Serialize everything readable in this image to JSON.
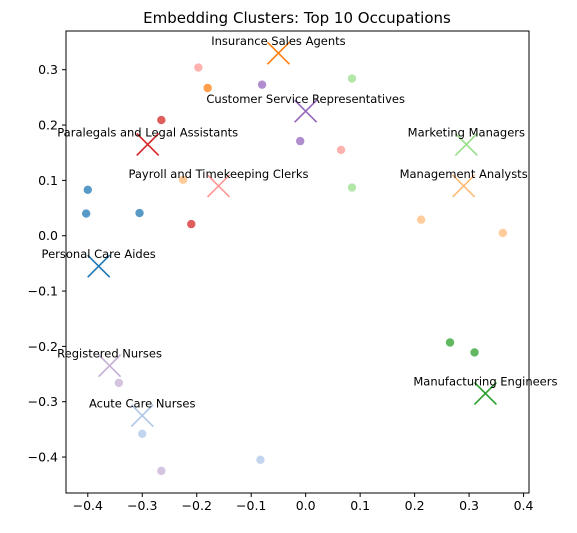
{
  "chart_data": {
    "type": "scatter",
    "title": "Embedding Clusters: Top 10 Occupations",
    "xlabel": "",
    "ylabel": "",
    "xlim": [
      -0.44,
      0.41
    ],
    "ylim": [
      -0.465,
      0.37
    ],
    "xticks": [
      -0.4,
      -0.3,
      -0.2,
      -0.1,
      0.0,
      0.1,
      0.2,
      0.3,
      0.4
    ],
    "xtick_labels": [
      "−0.4",
      "−0.3",
      "−0.2",
      "−0.1",
      "0.0",
      "0.1",
      "0.2",
      "0.3",
      "0.4"
    ],
    "yticks": [
      -0.4,
      -0.3,
      -0.2,
      -0.1,
      0.0,
      0.1,
      0.2,
      0.3
    ],
    "ytick_labels": [
      "−0.4",
      "−0.3",
      "−0.2",
      "−0.1",
      "0.0",
      "0.1",
      "0.2",
      "0.3"
    ],
    "grid": false,
    "clusters": [
      {
        "label": "Insurance Sales Agents",
        "color": "#ff7f0e",
        "centroid": [
          -0.05,
          0.33
        ],
        "points": [
          [
            -0.18,
            0.267
          ]
        ]
      },
      {
        "label": "Customer Service Representatives",
        "color": "#9467bd",
        "centroid": [
          0.0,
          0.225
        ],
        "points": [
          [
            -0.08,
            0.273
          ],
          [
            -0.01,
            0.171
          ]
        ]
      },
      {
        "label": "Paralegals and Legal Assistants",
        "color": "#d62728",
        "centroid": [
          -0.29,
          0.165
        ],
        "points": [
          [
            -0.265,
            0.209
          ],
          [
            -0.21,
            0.021
          ]
        ]
      },
      {
        "label": "Payroll and Timekeeping Clerks",
        "color": "#ff9896",
        "centroid": [
          -0.16,
          0.09
        ],
        "points": [
          [
            -0.197,
            0.304
          ],
          [
            0.065,
            0.155
          ]
        ]
      },
      {
        "label": "Marketing Managers",
        "color": "#98df8a",
        "centroid": [
          0.295,
          0.165
        ],
        "points": [
          [
            0.085,
            0.284
          ],
          [
            0.085,
            0.087
          ]
        ]
      },
      {
        "label": "Management Analysts",
        "color": "#ffbb78",
        "centroid": [
          0.29,
          0.09
        ],
        "points": [
          [
            -0.225,
            0.101
          ],
          [
            0.212,
            0.029
          ],
          [
            0.362,
            0.005
          ]
        ]
      },
      {
        "label": "Personal Care Aides",
        "color": "#1f77b4",
        "centroid": [
          -0.38,
          -0.055
        ],
        "points": [
          [
            -0.4,
            0.083
          ],
          [
            -0.403,
            0.04
          ],
          [
            -0.305,
            0.041
          ]
        ]
      },
      {
        "label": "Registered Nurses",
        "color": "#c5b0d5",
        "centroid": [
          -0.36,
          -0.235
        ],
        "points": [
          [
            -0.343,
            -0.266
          ],
          [
            -0.265,
            -0.425
          ]
        ]
      },
      {
        "label": "Acute Care Nurses",
        "color": "#aec7e8",
        "centroid": [
          -0.3,
          -0.325
        ],
        "points": [
          [
            -0.3,
            -0.358
          ],
          [
            -0.083,
            -0.405
          ]
        ]
      },
      {
        "label": "Manufacturing Engineers",
        "color": "#2ca02c",
        "centroid": [
          0.33,
          -0.285
        ],
        "points": [
          [
            0.265,
            -0.193
          ],
          [
            0.31,
            -0.211
          ]
        ]
      }
    ]
  }
}
